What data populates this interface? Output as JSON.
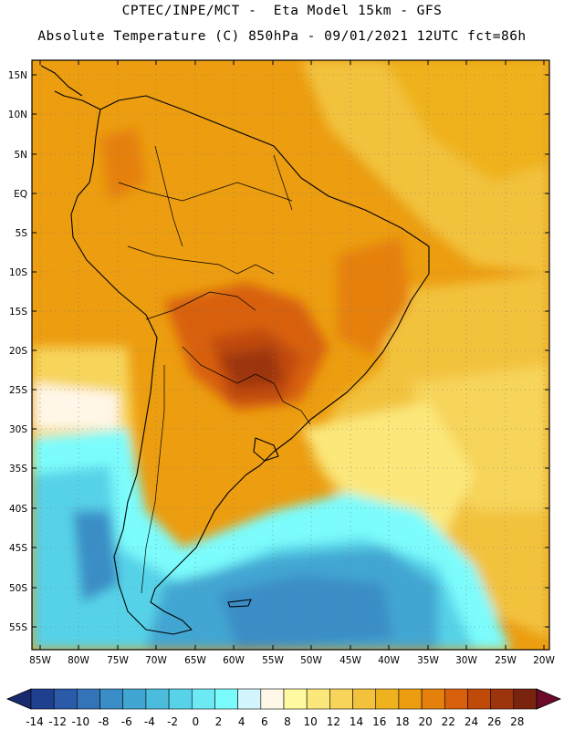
{
  "title": {
    "line1": "CPTEC/INPE/MCT -  Eta Model 15km - GFS",
    "line2": "Absolute Temperature (C) 850hPa - 09/01/2021 12UTC fct=86h"
  },
  "map": {
    "lat_labels": [
      "15N",
      "10N",
      "5N",
      "EQ",
      "5S",
      "10S",
      "15S",
      "20S",
      "25S",
      "30S",
      "35S",
      "40S",
      "45S",
      "50S",
      "55S"
    ],
    "lon_labels": [
      "85W",
      "80W",
      "75W",
      "70W",
      "65W",
      "60W",
      "55W",
      "50W",
      "45W",
      "40W",
      "35W",
      "30W",
      "25W",
      "20W"
    ]
  },
  "colorbar": {
    "ticks": [
      "-14",
      "-12",
      "-10",
      "-8",
      "-6",
      "-4",
      "-2",
      "0",
      "2",
      "4",
      "6",
      "8",
      "10",
      "12",
      "14",
      "16",
      "18",
      "20",
      "22",
      "24",
      "26",
      "28"
    ],
    "colors": [
      "#1f3f8f",
      "#2a5aa8",
      "#3374b8",
      "#3a8dc6",
      "#42a6d2",
      "#4bbcdc",
      "#57d2e8",
      "#6de9f4",
      "#7bfcfc",
      "#d2f6fb",
      "#fff7e8",
      "#fffaa0",
      "#fbe77a",
      "#f7d45a",
      "#f2c23c",
      "#efb21f",
      "#ec9d10",
      "#e5800c",
      "#d8600c",
      "#c04a0a",
      "#9c340c",
      "#7a2410"
    ],
    "arrow_low": "#1a2a6e",
    "arrow_high": "#6e0a2a"
  }
}
